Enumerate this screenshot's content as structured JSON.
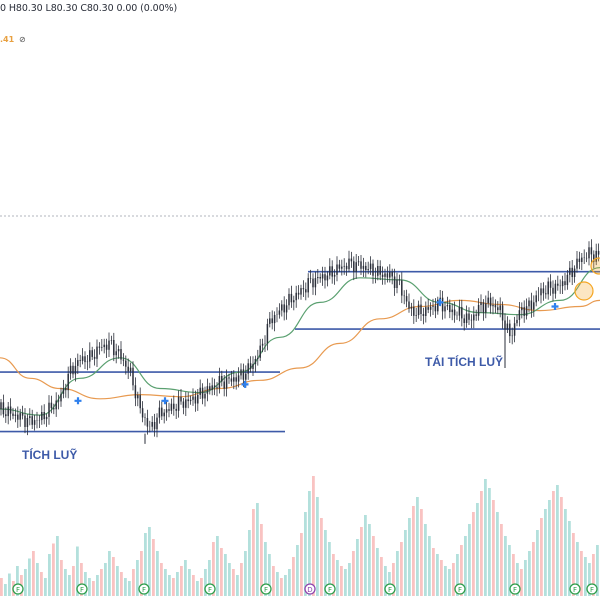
{
  "header": {
    "ohlc_text": "0 H80.30 L80.30 C80.30 0.00 (0.00%)",
    "indicator_value": ".41",
    "indicator_icon": "eye-icon"
  },
  "annotations": {
    "accumulation": "TÍCH LUỸ",
    "reaccumulation": "TÁI TÍCH LUỸ"
  },
  "colors": {
    "up": "#26a69a",
    "down": "#ef5350",
    "line": "#2a2e39",
    "support_resistance": "#3d5aa8",
    "ma_fast": "#5aa070",
    "ma_slow": "#e89a50",
    "cross_marker": "#2f80ed",
    "highlight": "#f5a623",
    "annotation_text": "#3d5aa8",
    "dotted_separator": "#b2b5be"
  },
  "chart_data": {
    "type": "line",
    "title": "",
    "xlabel": "",
    "ylabel": "",
    "price_range": [
      0,
      100
    ],
    "volume_range": [
      0,
      100
    ],
    "price": [
      [
        0,
        20
      ],
      [
        10,
        18
      ],
      [
        20,
        16
      ],
      [
        30,
        14
      ],
      [
        40,
        15
      ],
      [
        50,
        20
      ],
      [
        60,
        25
      ],
      [
        70,
        38
      ],
      [
        80,
        44
      ],
      [
        90,
        45
      ],
      [
        100,
        50
      ],
      [
        110,
        52
      ],
      [
        120,
        46
      ],
      [
        130,
        38
      ],
      [
        140,
        20
      ],
      [
        150,
        10
      ],
      [
        160,
        18
      ],
      [
        170,
        20
      ],
      [
        180,
        23
      ],
      [
        190,
        24
      ],
      [
        200,
        27
      ],
      [
        210,
        30
      ],
      [
        220,
        33
      ],
      [
        230,
        34
      ],
      [
        240,
        36
      ],
      [
        250,
        40
      ],
      [
        260,
        48
      ],
      [
        270,
        63
      ],
      [
        280,
        68
      ],
      [
        290,
        73
      ],
      [
        300,
        77
      ],
      [
        310,
        82
      ],
      [
        320,
        84
      ],
      [
        330,
        86
      ],
      [
        340,
        89
      ],
      [
        350,
        91
      ],
      [
        360,
        90
      ],
      [
        370,
        88
      ],
      [
        380,
        86
      ],
      [
        390,
        85
      ],
      [
        400,
        80
      ],
      [
        410,
        68
      ],
      [
        420,
        67
      ],
      [
        430,
        69
      ],
      [
        440,
        72
      ],
      [
        450,
        68
      ],
      [
        460,
        66
      ],
      [
        470,
        63
      ],
      [
        480,
        70
      ],
      [
        490,
        72
      ],
      [
        500,
        68
      ],
      [
        510,
        55
      ],
      [
        520,
        68
      ],
      [
        530,
        70
      ],
      [
        540,
        77
      ],
      [
        550,
        79
      ],
      [
        560,
        80
      ],
      [
        570,
        86
      ],
      [
        580,
        93
      ],
      [
        590,
        96
      ],
      [
        600,
        94
      ]
    ],
    "ma_fast": [
      [
        0,
        20
      ],
      [
        40,
        17
      ],
      [
        80,
        35
      ],
      [
        120,
        45
      ],
      [
        160,
        30
      ],
      [
        200,
        28
      ],
      [
        240,
        38
      ],
      [
        280,
        55
      ],
      [
        320,
        72
      ],
      [
        360,
        84
      ],
      [
        400,
        83
      ],
      [
        440,
        72
      ],
      [
        480,
        67
      ],
      [
        520,
        66
      ],
      [
        560,
        73
      ],
      [
        600,
        89
      ]
    ],
    "ma_slow": [
      [
        0,
        45
      ],
      [
        30,
        35
      ],
      [
        60,
        30
      ],
      [
        100,
        25
      ],
      [
        140,
        27
      ],
      [
        180,
        26
      ],
      [
        220,
        30
      ],
      [
        260,
        34
      ],
      [
        300,
        40
      ],
      [
        340,
        52
      ],
      [
        380,
        64
      ],
      [
        420,
        70
      ],
      [
        460,
        73
      ],
      [
        500,
        71
      ],
      [
        540,
        68
      ],
      [
        580,
        70
      ],
      [
        600,
        73
      ]
    ],
    "levels": [
      {
        "name": "accumulation-top",
        "value": 38,
        "x_start": 0,
        "x_end": 280
      },
      {
        "name": "accumulation-bottom",
        "value": 9,
        "x_start": 0,
        "x_end": 285
      },
      {
        "name": "reaccumulation-top",
        "value": 87,
        "x_start": 308,
        "x_end": 600
      },
      {
        "name": "reaccumulation-bottom",
        "value": 59,
        "x_start": 295,
        "x_end": 600
      }
    ],
    "crosses": [
      [
        78,
        24
      ],
      [
        165,
        24
      ],
      [
        245,
        32
      ],
      [
        440,
        72
      ],
      [
        555,
        70
      ]
    ],
    "volume": [
      12,
      8,
      15,
      10,
      20,
      14,
      18,
      25,
      30,
      22,
      16,
      12,
      28,
      35,
      40,
      24,
      18,
      14,
      20,
      33,
      22,
      16,
      12,
      10,
      14,
      18,
      22,
      30,
      26,
      20,
      16,
      12,
      10,
      18,
      24,
      30,
      42,
      46,
      38,
      30,
      22,
      18,
      14,
      12,
      16,
      20,
      24,
      18,
      14,
      10,
      12,
      18,
      24,
      36,
      40,
      32,
      28,
      22,
      18,
      14,
      22,
      30,
      44,
      58,
      62,
      48,
      36,
      28,
      20,
      16,
      12,
      14,
      18,
      26,
      34,
      42,
      56,
      70,
      80,
      66,
      52,
      44,
      36,
      28,
      24,
      20,
      18,
      22,
      30,
      38,
      46,
      54,
      48,
      40,
      32,
      26,
      20,
      16,
      22,
      30,
      36,
      44,
      52,
      60,
      66,
      58,
      48,
      40,
      32,
      28,
      24,
      20,
      18,
      22,
      28,
      34,
      40,
      48,
      56,
      62,
      70,
      78,
      72,
      64,
      56,
      48,
      40,
      34,
      28,
      22,
      18,
      24,
      30,
      36,
      44,
      52,
      58,
      64,
      70,
      74,
      66,
      58,
      50,
      42,
      36,
      30,
      26,
      22,
      28,
      34
    ],
    "events": [
      {
        "x": 18,
        "label": "F"
      },
      {
        "x": 82,
        "label": "F"
      },
      {
        "x": 144,
        "label": "F"
      },
      {
        "x": 210,
        "label": "F"
      },
      {
        "x": 266,
        "label": "F"
      },
      {
        "x": 310,
        "label": "D"
      },
      {
        "x": 330,
        "label": "F"
      },
      {
        "x": 390,
        "label": "F"
      },
      {
        "x": 460,
        "label": "F"
      },
      {
        "x": 515,
        "label": "F"
      },
      {
        "x": 575,
        "label": "F"
      },
      {
        "x": 592,
        "label": "F"
      }
    ]
  }
}
